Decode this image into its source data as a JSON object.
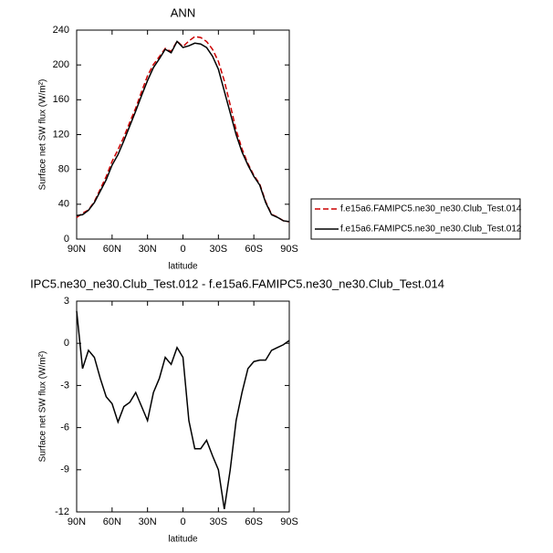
{
  "chart_data": [
    {
      "type": "line",
      "title": "ANN",
      "x_label": "latitude",
      "y_label": "Surface net SW flux (W/m²)",
      "x": [
        90,
        85,
        80,
        75,
        70,
        65,
        60,
        55,
        50,
        45,
        40,
        35,
        30,
        25,
        20,
        15,
        10,
        5,
        0,
        -5,
        -10,
        -15,
        -20,
        -25,
        -30,
        -35,
        -40,
        -45,
        -50,
        -55,
        -60,
        -65,
        -70,
        -75,
        -80,
        -85,
        -90
      ],
      "series": [
        {
          "name": "f.e15a6.FAMIPC5.ne30_ne30.Club_Test.014",
          "color": "#cc0000",
          "dash": true,
          "values": [
            24.7,
            29.8,
            33.5,
            43,
            57.5,
            71.8,
            89.3,
            102.6,
            117.5,
            134.2,
            150.5,
            169.5,
            187.5,
            200.5,
            209.5,
            219,
            215.5,
            227.3,
            221,
            227.5,
            232.5,
            231.5,
            226.9,
            218,
            204,
            181.8,
            154,
            125.5,
            103.5,
            86.8,
            73.3,
            63.2,
            43.2,
            28.5,
            25.3,
            21.1,
            19.8
          ]
        },
        {
          "name": "f.e15a6.FAMIPC5.ne30_ne30.Club_Test.012",
          "color": "#000000",
          "dash": false,
          "values": [
            27,
            28,
            33,
            42,
            55,
            68,
            85,
            97,
            113,
            130,
            147,
            165,
            182,
            197,
            207,
            218,
            214,
            227,
            220,
            222,
            225,
            224,
            220,
            210,
            195,
            170,
            145,
            120,
            100,
            85,
            72,
            62,
            42,
            28,
            25,
            21,
            20
          ]
        }
      ],
      "xlim": [
        90,
        -90
      ],
      "xticks": [
        {
          "value": 90,
          "label": "90N"
        },
        {
          "value": 60,
          "label": "60N"
        },
        {
          "value": 30,
          "label": "30N"
        },
        0,
        {
          "value": -30,
          "label": "30S"
        },
        {
          "value": -60,
          "label": "60S"
        },
        {
          "value": -90,
          "label": "90S"
        }
      ],
      "ylim": [
        0,
        240
      ],
      "yticks": [
        0,
        40,
        80,
        120,
        160,
        200,
        240
      ],
      "legend": "right"
    },
    {
      "type": "line",
      "title": "IPC5.ne30_ne30.Club_Test.012 - f.e15a6.FAMIPC5.ne30_ne30.Club_Test.014",
      "x_label": "latitude",
      "y_label": "Surface net SW flux (W/m²)",
      "x": [
        90,
        85,
        80,
        75,
        70,
        65,
        60,
        55,
        50,
        45,
        40,
        35,
        30,
        25,
        20,
        15,
        10,
        5,
        0,
        -5,
        -10,
        -15,
        -20,
        -25,
        -30,
        -35,
        -40,
        -45,
        -50,
        -55,
        -60,
        -65,
        -70,
        -75,
        -80,
        -85,
        -90
      ],
      "series": [
        {
          "color": "#000000",
          "dash": false,
          "values": [
            2.3,
            -1.8,
            -0.5,
            -1,
            -2.5,
            -3.8,
            -4.3,
            -5.6,
            -4.5,
            -4.2,
            -3.5,
            -4.5,
            -5.5,
            -3.5,
            -2.5,
            -1,
            -1.5,
            -0.3,
            -1,
            -5.5,
            -7.5,
            -7.5,
            -6.9,
            -8,
            -9,
            -11.8,
            -9,
            -5.5,
            -3.5,
            -1.8,
            -1.3,
            -1.2,
            -1.2,
            -0.5,
            -0.3,
            -0.1,
            0.2
          ]
        }
      ],
      "xlim": [
        90,
        -90
      ],
      "xticks": [
        {
          "value": 90,
          "label": "90N"
        },
        {
          "value": 60,
          "label": "60N"
        },
        {
          "value": 30,
          "label": "30N"
        },
        0,
        {
          "value": -30,
          "label": "30S"
        },
        {
          "value": -60,
          "label": "60S"
        },
        {
          "value": -90,
          "label": "90S"
        }
      ],
      "ylim": [
        -12,
        3
      ],
      "yticks": [
        3,
        0,
        -3,
        -6,
        -9,
        -12
      ]
    }
  ]
}
